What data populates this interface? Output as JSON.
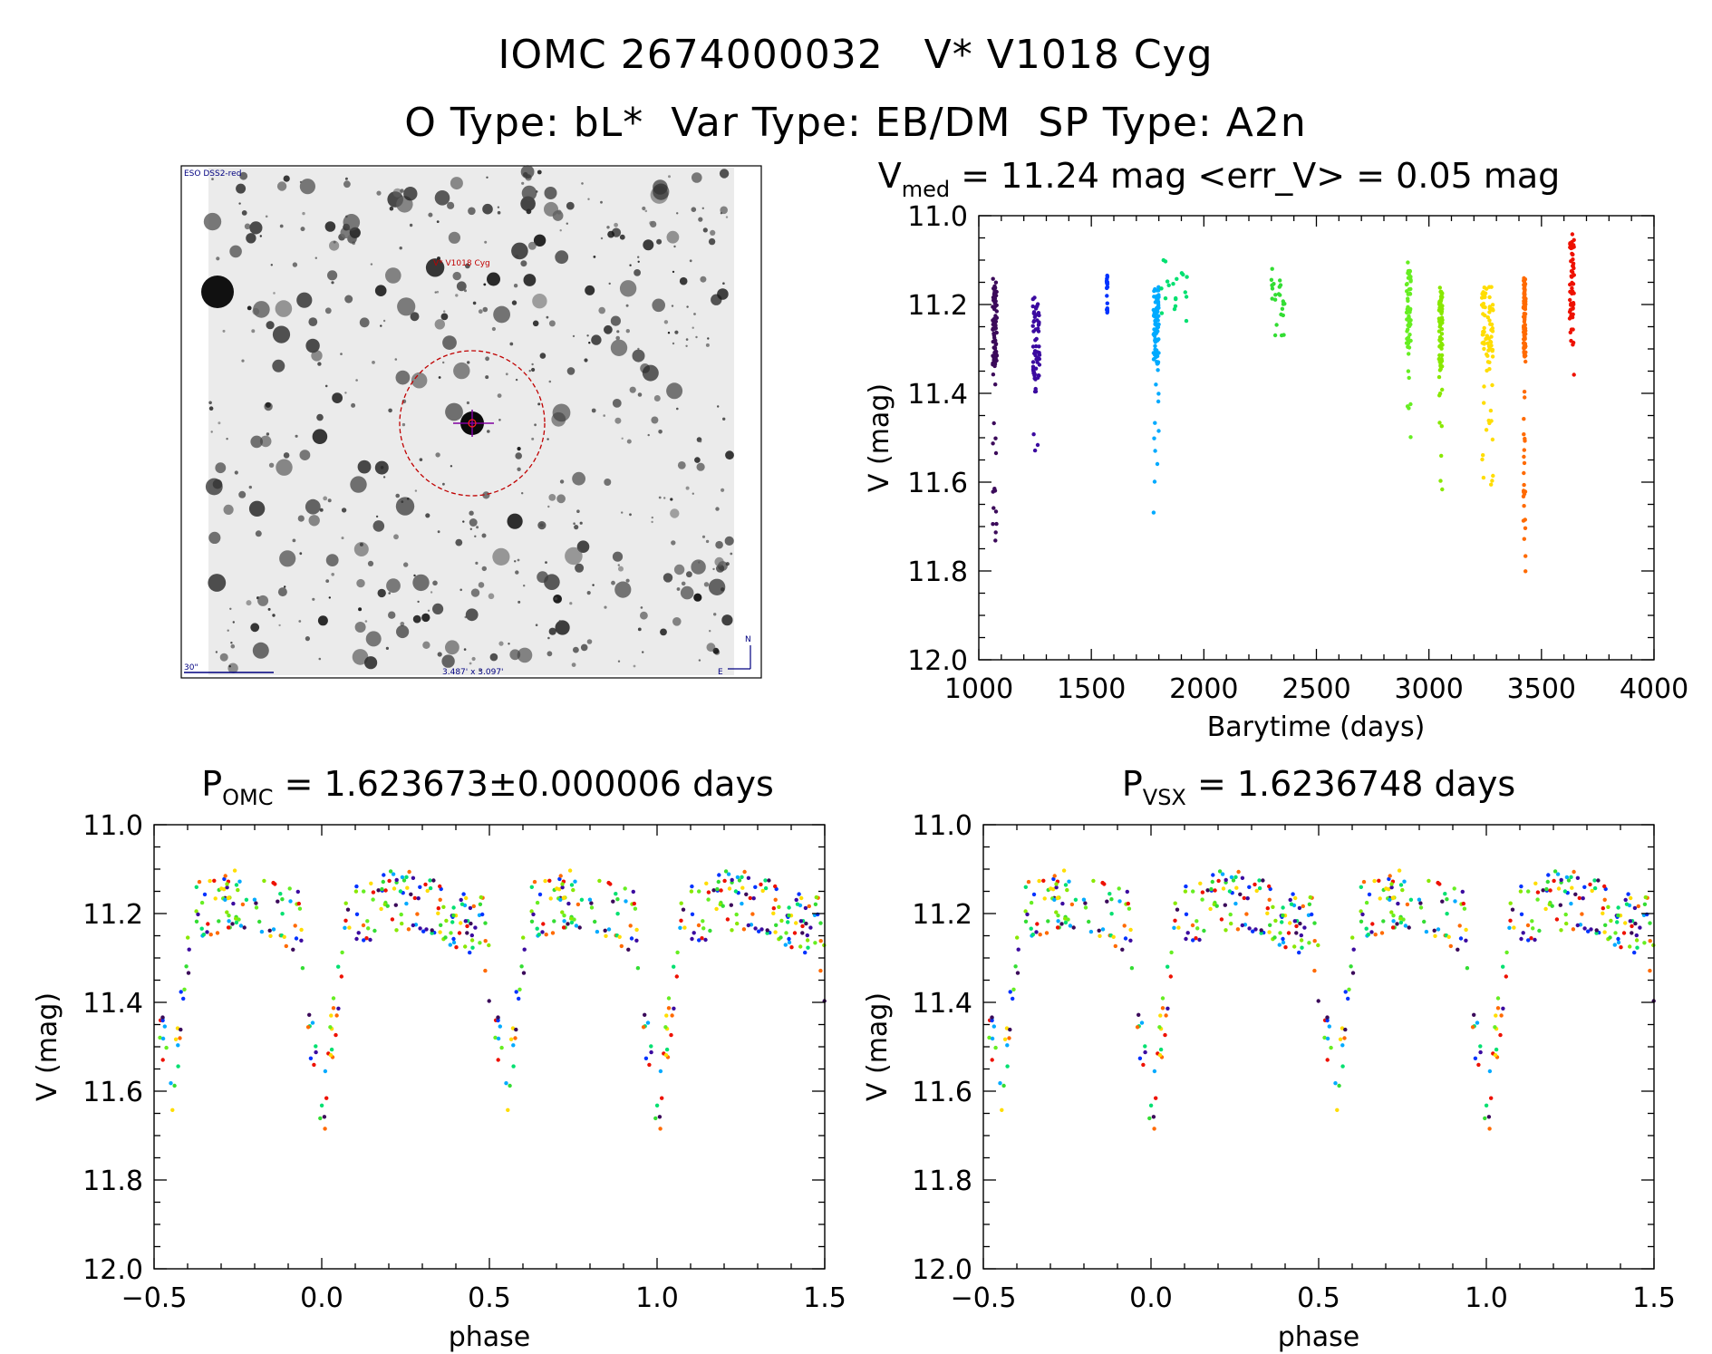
{
  "figure": {
    "title_line1": "IOMC 2674000032   V* V1018 Cyg",
    "title_line2": "O Type: bL*  Var Type: EB/DM  SP Type: A2n"
  },
  "image_panel": {
    "survey_label": "ESO DSS2-red",
    "target_label": "V* V1018 Cyg",
    "scale_label": "30\"",
    "fov_label": "3.487' x 3.097'",
    "north_label": "N",
    "east_label": "E"
  },
  "chart_data": [
    {
      "id": "lightcurve",
      "type": "scatter",
      "title_main": "V",
      "title_sub": "med",
      "title_rest": " = 11.24 mag <err_V> = 0.05 mag",
      "xlabel": "Barytime (days)",
      "ylabel": "V (mag)",
      "xlim": [
        1000,
        4000
      ],
      "ylim": [
        12.0,
        11.0
      ],
      "xticks": [
        1000,
        1500,
        2000,
        2500,
        3000,
        3500,
        4000
      ],
      "yticks": [
        11.0,
        11.2,
        11.4,
        11.6,
        11.8,
        12.0
      ],
      "series": [
        {
          "name": "s1",
          "color": "#3b0a5a",
          "t0": 1062,
          "t1": 1080,
          "vmin": 11.14,
          "vmax": 11.75
        },
        {
          "name": "s2",
          "color": "#3b0aa0",
          "t0": 1240,
          "t1": 1270,
          "vmin": 11.17,
          "vmax": 11.55
        },
        {
          "name": "s3",
          "color": "#0033ff",
          "t0": 1568,
          "t1": 1572,
          "vmin": 11.12,
          "vmax": 11.2
        },
        {
          "name": "s4",
          "color": "#00aaff",
          "t0": 1775,
          "t1": 1800,
          "vmin": 11.14,
          "vmax": 11.67
        },
        {
          "name": "s5",
          "color": "#00e070",
          "t0": 1805,
          "t1": 1925,
          "vmin": 11.1,
          "vmax": 11.22
        },
        {
          "name": "s6",
          "color": "#33dd33",
          "t0": 2300,
          "t1": 2360,
          "vmin": 11.1,
          "vmax": 11.25
        },
        {
          "name": "s7",
          "color": "#66ee22",
          "t0": 2900,
          "t1": 2920,
          "vmin": 11.1,
          "vmax": 11.5
        },
        {
          "name": "s8",
          "color": "#88e800",
          "t0": 3045,
          "t1": 3060,
          "vmin": 11.15,
          "vmax": 11.62
        },
        {
          "name": "s9",
          "color": "#ffdd00",
          "t0": 3235,
          "t1": 3285,
          "vmin": 11.15,
          "vmax": 11.63
        },
        {
          "name": "s10",
          "color": "#ff6a00",
          "t0": 3420,
          "t1": 3430,
          "vmin": 11.12,
          "vmax": 11.81
        },
        {
          "name": "s11",
          "color": "#ee1100",
          "t0": 3625,
          "t1": 3645,
          "vmin": 11.04,
          "vmax": 11.4
        }
      ]
    },
    {
      "id": "phase_omc",
      "type": "scatter",
      "title_main": "P",
      "title_sub": "OMC",
      "title_rest": " = 1.623673±0.000006 days",
      "xlabel": "phase",
      "ylabel": "V (mag)",
      "xlim": [
        -0.5,
        1.5
      ],
      "ylim": [
        12.0,
        11.0
      ],
      "xticks": [
        "−0.5",
        "0.0",
        "0.5",
        "1.0",
        "1.5"
      ],
      "yticks": [
        11.0,
        11.2,
        11.4,
        11.6,
        11.8,
        12.0
      ],
      "light_curve_model": {
        "max_mag": 11.2,
        "primary_min_mag": 11.65,
        "primary_min_phase": 0.0,
        "secondary_min_mag": 11.6,
        "secondary_min_phase": 0.55
      }
    },
    {
      "id": "phase_vsx",
      "type": "scatter",
      "title_main": "P",
      "title_sub": "VSX",
      "title_rest": " = 1.6236748 days",
      "xlabel": "phase",
      "ylabel": "V (mag)",
      "xlim": [
        -0.5,
        1.5
      ],
      "ylim": [
        12.0,
        11.0
      ],
      "xticks": [
        "−0.5",
        "0.0",
        "0.5",
        "1.0",
        "1.5"
      ],
      "yticks": [
        11.0,
        11.2,
        11.4,
        11.6,
        11.8,
        12.0
      ],
      "light_curve_model": {
        "max_mag": 11.2,
        "primary_min_mag": 11.65,
        "primary_min_phase": 0.0,
        "secondary_min_mag": 11.6,
        "secondary_min_phase": 0.55
      }
    }
  ]
}
